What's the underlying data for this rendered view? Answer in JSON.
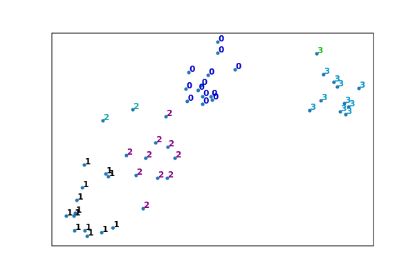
{
  "chart_data": {
    "type": "scatter",
    "title": "",
    "xlabel": "",
    "ylabel": "",
    "xlim": [
      0,
      100
    ],
    "ylim": [
      0,
      100
    ],
    "grid": false,
    "axes_ticks": false,
    "marker_color": "#1f77b4",
    "label_colors": {
      "0": "#0000cc",
      "1": "#000000",
      "2": "#880088",
      "3": "#1199cc"
    },
    "points": [
      {
        "x": 51.6,
        "y": 95.8,
        "label": "0",
        "color": "#0000cc"
      },
      {
        "x": 51.6,
        "y": 90.6,
        "label": "0",
        "color": "#0000cc"
      },
      {
        "x": 57.0,
        "y": 82.8,
        "label": "0",
        "color": "#0000cc"
      },
      {
        "x": 42.6,
        "y": 81.5,
        "label": "0",
        "color": "#0000cc"
      },
      {
        "x": 48.6,
        "y": 80.2,
        "label": "0",
        "color": "#0000cc"
      },
      {
        "x": 46.4,
        "y": 75.3,
        "label": "0",
        "color": "#0000cc"
      },
      {
        "x": 41.7,
        "y": 73.7,
        "label": "0",
        "color": "#0000cc"
      },
      {
        "x": 45.5,
        "y": 73.1,
        "label": "0",
        "color": "#0000cc"
      },
      {
        "x": 46.9,
        "y": 70.1,
        "label": "0",
        "color": "#0000cc"
      },
      {
        "x": 49.5,
        "y": 70.1,
        "label": "0",
        "color": "#0000cc"
      },
      {
        "x": 49.9,
        "y": 68.5,
        "label": "0",
        "color": "#0000cc"
      },
      {
        "x": 42.1,
        "y": 67.9,
        "label": "0",
        "color": "#0000cc"
      },
      {
        "x": 46.9,
        "y": 66.6,
        "label": "0",
        "color": "#0000cc"
      },
      {
        "x": 82.4,
        "y": 90.3,
        "label": "3",
        "color": "#22bb22"
      },
      {
        "x": 84.5,
        "y": 80.5,
        "label": "3",
        "color": "#1199cc"
      },
      {
        "x": 87.7,
        "y": 76.9,
        "label": "3",
        "color": "#1199cc"
      },
      {
        "x": 95.5,
        "y": 74.0,
        "label": "3",
        "color": "#1199cc"
      },
      {
        "x": 88.8,
        "y": 74.7,
        "label": "3",
        "color": "#1199cc"
      },
      {
        "x": 83.7,
        "y": 68.2,
        "label": "3",
        "color": "#1199cc"
      },
      {
        "x": 91.0,
        "y": 66.9,
        "label": "3",
        "color": "#1199cc"
      },
      {
        "x": 80.2,
        "y": 63.6,
        "label": "3",
        "color": "#1199cc"
      },
      {
        "x": 92.3,
        "y": 65.3,
        "label": "3",
        "color": "#1199cc"
      },
      {
        "x": 89.7,
        "y": 63.0,
        "label": "3",
        "color": "#1199cc"
      },
      {
        "x": 91.4,
        "y": 61.7,
        "label": "3",
        "color": "#1199cc"
      },
      {
        "x": 15.9,
        "y": 58.8,
        "label": "2",
        "color": "#11aaaa"
      },
      {
        "x": 25.2,
        "y": 64.0,
        "label": "2",
        "color": "#11aaaa"
      },
      {
        "x": 35.5,
        "y": 60.7,
        "label": "2",
        "color": "#880088"
      },
      {
        "x": 32.3,
        "y": 48.4,
        "label": "2",
        "color": "#880088"
      },
      {
        "x": 36.1,
        "y": 46.4,
        "label": "2",
        "color": "#880088"
      },
      {
        "x": 23.2,
        "y": 42.5,
        "label": "2",
        "color": "#880088"
      },
      {
        "x": 29.2,
        "y": 41.2,
        "label": "2",
        "color": "#880088"
      },
      {
        "x": 38.3,
        "y": 41.2,
        "label": "2",
        "color": "#880088"
      },
      {
        "x": 26.2,
        "y": 33.1,
        "label": "2",
        "color": "#880088"
      },
      {
        "x": 32.9,
        "y": 31.8,
        "label": "2",
        "color": "#880088"
      },
      {
        "x": 35.9,
        "y": 31.8,
        "label": "2",
        "color": "#880088"
      },
      {
        "x": 28.4,
        "y": 17.5,
        "label": "2",
        "color": "#880088"
      },
      {
        "x": 10.1,
        "y": 38.0,
        "label": "1",
        "color": "#000000"
      },
      {
        "x": 16.8,
        "y": 33.8,
        "label": "1",
        "color": "#000000"
      },
      {
        "x": 17.6,
        "y": 32.5,
        "label": "1",
        "color": "#000000"
      },
      {
        "x": 9.5,
        "y": 27.3,
        "label": "1",
        "color": "#000000"
      },
      {
        "x": 7.8,
        "y": 21.4,
        "label": "1",
        "color": "#000000"
      },
      {
        "x": 7.3,
        "y": 15.3,
        "label": "1",
        "color": "#000000"
      },
      {
        "x": 6.9,
        "y": 14.0,
        "label": "1",
        "color": "#000000"
      },
      {
        "x": 4.5,
        "y": 14.0,
        "label": "1",
        "color": "#000000"
      },
      {
        "x": 7.1,
        "y": 7.1,
        "label": "1",
        "color": "#000000"
      },
      {
        "x": 10.3,
        "y": 7.1,
        "label": "1",
        "color": "#000000"
      },
      {
        "x": 11.0,
        "y": 4.5,
        "label": "1",
        "color": "#000000"
      },
      {
        "x": 15.5,
        "y": 6.2,
        "label": "1",
        "color": "#000000"
      },
      {
        "x": 19.0,
        "y": 8.4,
        "label": "1",
        "color": "#000000"
      }
    ]
  }
}
